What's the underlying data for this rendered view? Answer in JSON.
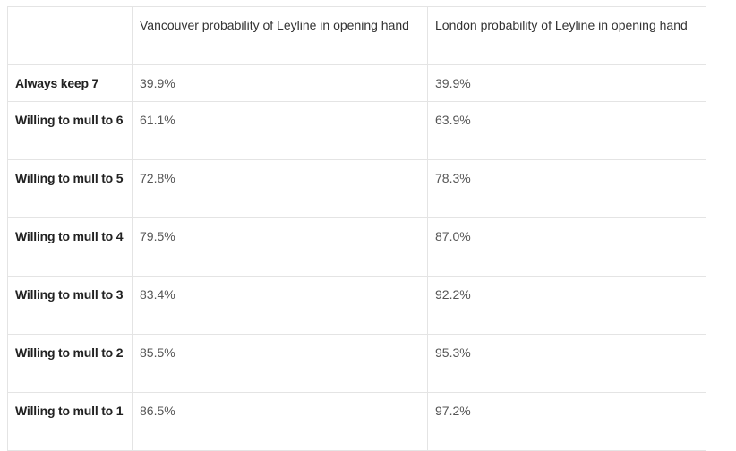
{
  "table": {
    "headers": [
      "",
      "Vancouver probability of Leyline in opening hand",
      "London probability of Leyline in opening hand"
    ],
    "rows": [
      {
        "label": "Always keep 7",
        "vancouver": "39.9%",
        "london": "39.9%"
      },
      {
        "label": "Willing to mull to 6",
        "vancouver": "61.1%",
        "london": "63.9%"
      },
      {
        "label": "Willing to mull to 5",
        "vancouver": "72.8%",
        "london": "78.3%"
      },
      {
        "label": "Willing to mull to 4",
        "vancouver": "79.5%",
        "london": "87.0%"
      },
      {
        "label": "Willing to mull to 3",
        "vancouver": "83.4%",
        "london": "92.2%"
      },
      {
        "label": "Willing to mull to 2",
        "vancouver": "85.5%",
        "london": "95.3%"
      },
      {
        "label": "Willing to mull to 1",
        "vancouver": "86.5%",
        "london": "97.2%"
      }
    ]
  }
}
